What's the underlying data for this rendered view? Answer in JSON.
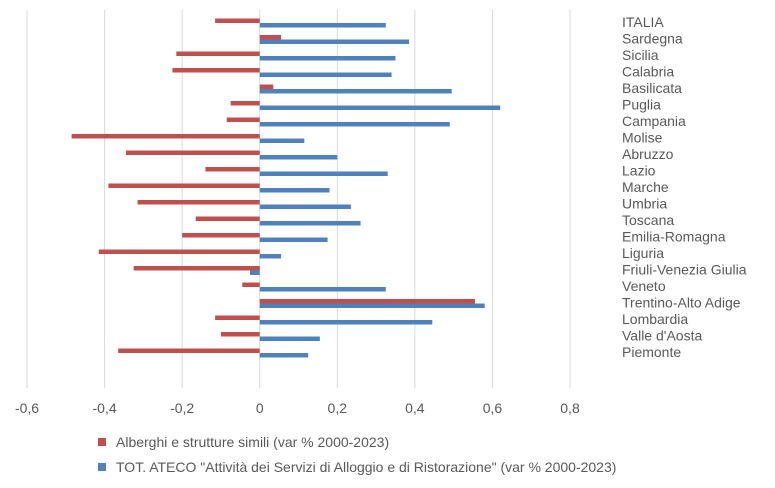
{
  "chart_data": {
    "type": "bar",
    "orientation": "horizontal",
    "categories": [
      "ITALIA",
      "Sardegna",
      "Sicilia",
      "Calabria",
      "Basilicata",
      "Puglia",
      "Campania",
      "Molise",
      "Abruzzo",
      "Lazio",
      "Marche",
      "Umbria",
      "Toscana",
      "Emilia-Romagna",
      "Liguria",
      "Friuli-Venezia Giulia",
      "Veneto",
      "Trentino-Alto Adige",
      "Lombardia",
      "Valle d'Aosta",
      "Piemonte"
    ],
    "series": [
      {
        "name": "Alberghi e strutture simili (var % 2000-2023)",
        "color": "#C0504D",
        "values": [
          -0.115,
          0.055,
          -0.215,
          -0.225,
          0.035,
          -0.075,
          -0.085,
          -0.485,
          -0.345,
          -0.14,
          -0.39,
          -0.315,
          -0.165,
          -0.2,
          -0.415,
          -0.325,
          -0.045,
          0.555,
          -0.115,
          -0.1,
          -0.365
        ]
      },
      {
        "name": "TOT. ATECO \"Attività dei Servizi di Alloggio e di Ristorazione\" (var % 2000-2023)",
        "color": "#4F81BD",
        "values": [
          0.325,
          0.385,
          0.35,
          0.34,
          0.495,
          0.62,
          0.49,
          0.115,
          0.2,
          0.33,
          0.18,
          0.235,
          0.26,
          0.175,
          0.055,
          -0.025,
          0.325,
          0.58,
          0.445,
          0.155,
          0.125
        ]
      }
    ],
    "xlim": [
      -0.6,
      0.8
    ],
    "xticks": [
      "-0,6",
      "-0,4",
      "-0,2",
      "0",
      "0,2",
      "0,4",
      "0,6",
      "0,8"
    ],
    "tick_values": [
      -0.6,
      -0.4,
      -0.2,
      0,
      0.2,
      0.4,
      0.6,
      0.8
    ],
    "grid": "vertical",
    "legend_position": "bottom"
  }
}
